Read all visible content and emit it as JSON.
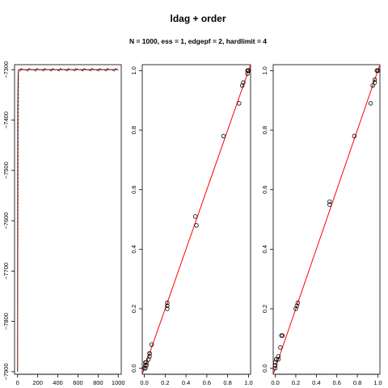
{
  "title": "ldag + order",
  "subtitle": "N = 1000, ess = 1, edgepf = 2, hardlimit = 4",
  "chart_data": [
    {
      "type": "line",
      "series": [
        {
          "name": "",
          "x": [
            0,
            1,
            2,
            3,
            4,
            5,
            6,
            7,
            8,
            9,
            10,
            12,
            14,
            16,
            18,
            20,
            25,
            30,
            40,
            60,
            100,
            200,
            300,
            400,
            500,
            600,
            700,
            800,
            900,
            1000
          ],
          "y": [
            -7900,
            -7600,
            -7380,
            -7360,
            -7340,
            -7320,
            -7310,
            -7305,
            -7303,
            -7302,
            -7301,
            -7300,
            -7300,
            -7300,
            -7300,
            -7300,
            -7300,
            -7300,
            -7300,
            -7300,
            -7300,
            -7300,
            -7300,
            -7300,
            -7300,
            -7300,
            -7300,
            -7300,
            -7300,
            -7300
          ],
          "color": "#000000"
        },
        {
          "name": "",
          "x": [
            0,
            10,
            25,
            50,
            100,
            200,
            300,
            400,
            500,
            600,
            700,
            800,
            900,
            1000
          ],
          "y": [
            -7900,
            -7300,
            -7300,
            -7300,
            -7300,
            -7300,
            -7300,
            -7300,
            -7300,
            -7300,
            -7300,
            -7300,
            -7300,
            -7300
          ],
          "color": "#dd2222",
          "dashed": true
        }
      ],
      "xlim": [
        -30,
        1030
      ],
      "ylim": [
        -7905,
        -7290
      ],
      "xticks": [
        0,
        200,
        400,
        600,
        800,
        1000
      ],
      "yticks": [
        -7900,
        -7800,
        -7700,
        -7600,
        -7500,
        -7400,
        -7300
      ],
      "grid": false
    },
    {
      "type": "scatter",
      "x": [
        0.0,
        0.01,
        0.01,
        0.01,
        0.02,
        0.02,
        0.04,
        0.05,
        0.05,
        0.05,
        0.07,
        0.22,
        0.22,
        0.22,
        0.49,
        0.5,
        0.76,
        0.91,
        0.94,
        0.95,
        0.99,
        0.99,
        1.0,
        1.0,
        1.0
      ],
      "y": [
        0.0,
        0.0,
        0.01,
        0.02,
        0.01,
        0.02,
        0.03,
        0.04,
        0.05,
        0.05,
        0.08,
        0.2,
        0.21,
        0.22,
        0.51,
        0.48,
        0.78,
        0.89,
        0.95,
        0.96,
        0.99,
        1.0,
        1.0,
        1.0,
        1.0
      ],
      "reference_line": {
        "slope": 1,
        "intercept": 0,
        "color": "#ff0000"
      },
      "xlim": [
        -0.02,
        1.02
      ],
      "ylim": [
        -0.02,
        1.02
      ],
      "xticks": [
        0.0,
        0.2,
        0.4,
        0.6,
        0.8,
        1.0
      ],
      "yticks": [
        0.0,
        0.2,
        0.4,
        0.6,
        0.8,
        1.0
      ],
      "grid": false
    },
    {
      "type": "scatter",
      "x": [
        0.0,
        0.0,
        0.0,
        0.01,
        0.01,
        0.03,
        0.03,
        0.05,
        0.06,
        0.07,
        0.2,
        0.21,
        0.22,
        0.53,
        0.53,
        0.77,
        0.93,
        0.95,
        0.97,
        0.97,
        0.99,
        1.0,
        1.0
      ],
      "y": [
        0.0,
        0.01,
        0.02,
        0.03,
        0.03,
        0.03,
        0.04,
        0.07,
        0.11,
        0.11,
        0.2,
        0.21,
        0.22,
        0.55,
        0.56,
        0.78,
        0.89,
        0.95,
        0.96,
        0.97,
        1.0,
        1.0,
        1.0
      ],
      "reference_line": {
        "slope": 1,
        "intercept": 0,
        "color": "#ff0000"
      },
      "xlim": [
        -0.02,
        1.02
      ],
      "ylim": [
        -0.02,
        1.02
      ],
      "xticks": [
        0.0,
        0.2,
        0.4,
        0.6,
        0.8,
        1.0
      ],
      "yticks": [
        0.0,
        0.2,
        0.4,
        0.6,
        0.8,
        1.0
      ],
      "grid": false
    }
  ]
}
